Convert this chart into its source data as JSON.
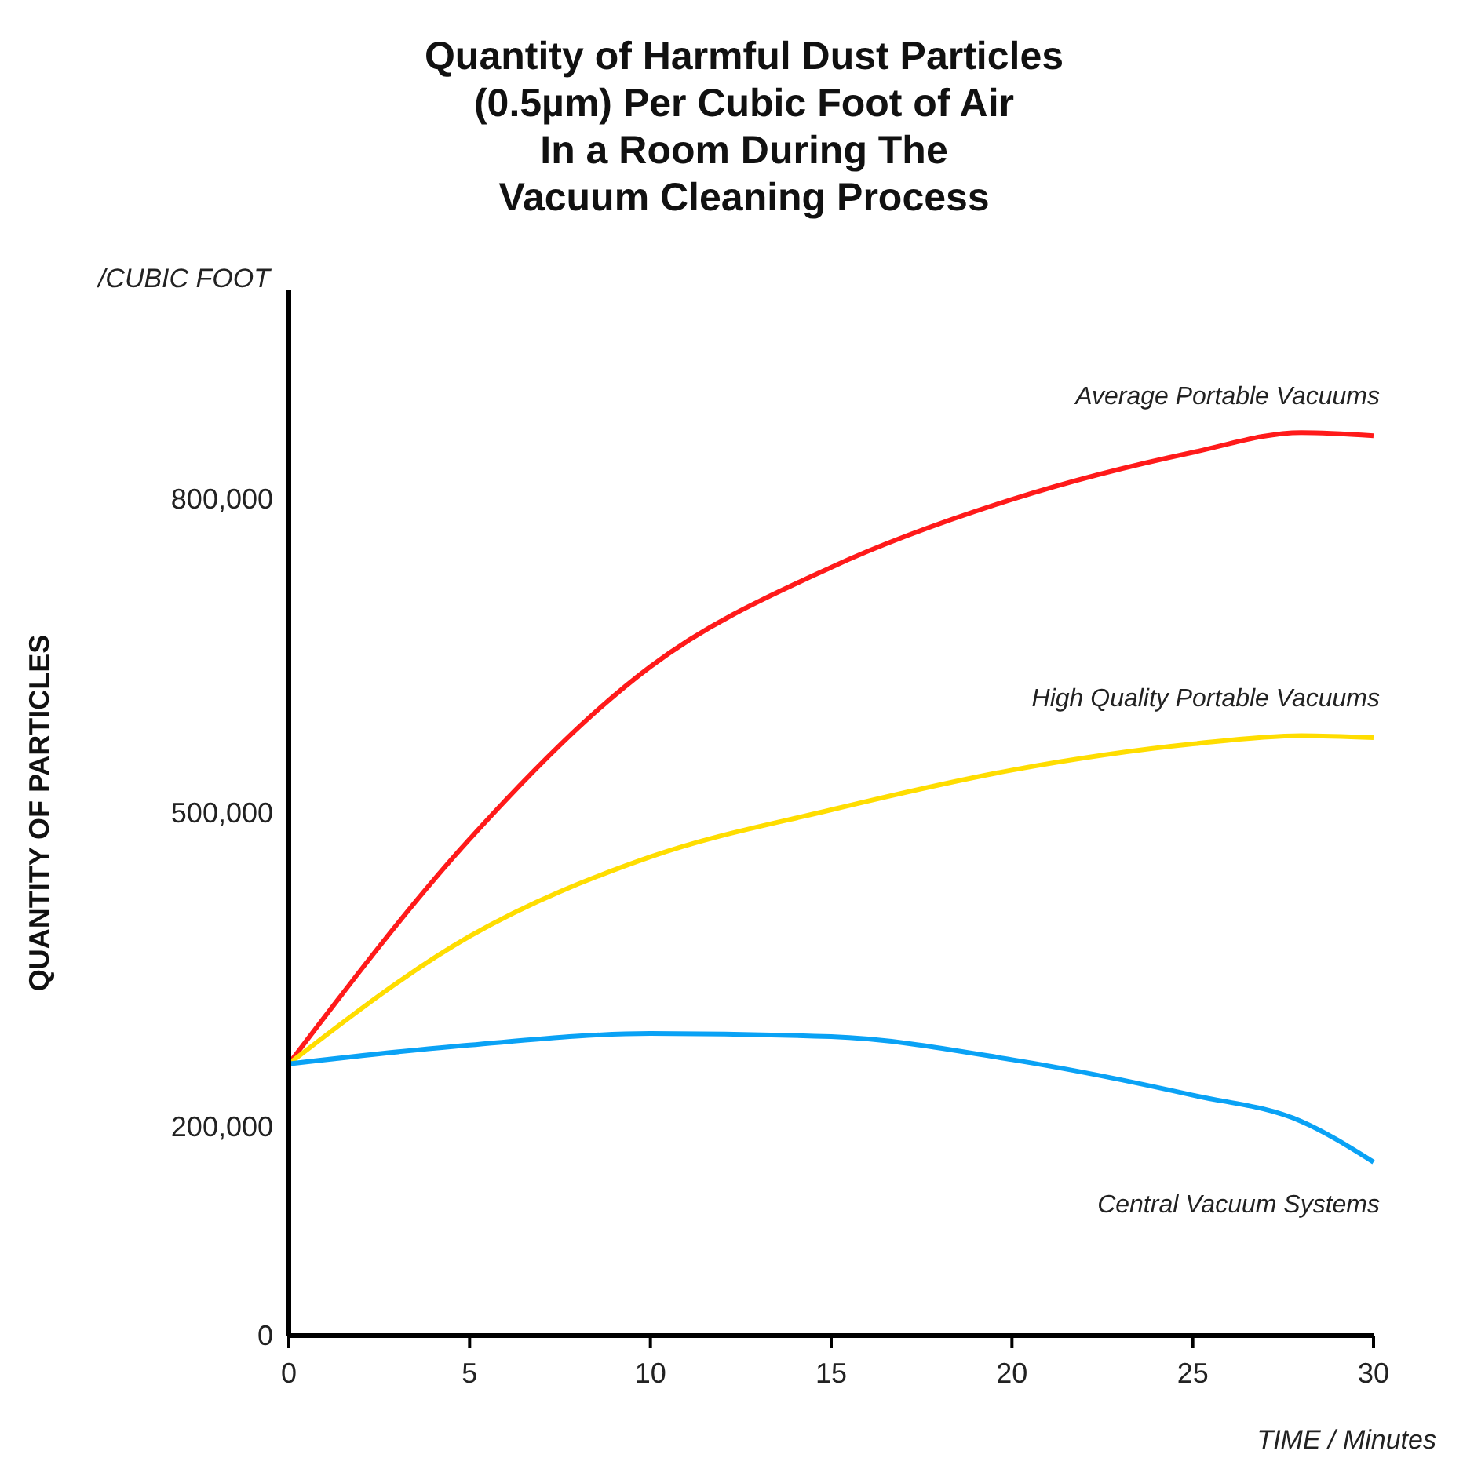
{
  "chart_data": {
    "type": "line",
    "title": "Quantity of Harmful Dust Particles\n(0.5µm) Per Cubic Foot of Air\nIn a Room During The\nVacuum Cleaning Process",
    "xlabel": "TIME / Minutes",
    "ylabel": "QUANTITY OF PARTICLES",
    "annotations": [
      "/CUBIC FOOT"
    ],
    "x": [
      0,
      5,
      10,
      15,
      20,
      25,
      28,
      30
    ],
    "series": [
      {
        "name": "Average Portable Vacuums",
        "color": "#ff1a1a",
        "values": [
          260000,
          475000,
          640000,
          735000,
          800000,
          845000,
          864000,
          861000
        ]
      },
      {
        "name": "High Quality Portable Vacuums",
        "color": "#ffdd00",
        "values": [
          260000,
          382000,
          458000,
          503000,
          541000,
          566000,
          574000,
          572000
        ]
      },
      {
        "name": "Central Vacuum Systems",
        "color": "#0aa2f5",
        "values": [
          260000,
          278000,
          289000,
          286000,
          264000,
          230000,
          205000,
          166000
        ]
      }
    ],
    "xlim": [
      0,
      30
    ],
    "xticks": [
      0,
      5,
      10,
      15,
      20,
      25,
      30
    ],
    "ylim": [
      0,
      1000000
    ],
    "yticks": [
      0,
      {
        "value": 200000,
        "label": "200,000"
      },
      {
        "value": 500000,
        "label": "500,000"
      },
      {
        "value": 800000,
        "label": "800,000"
      }
    ],
    "grid": false,
    "line_style": "solid",
    "marker": "none"
  }
}
